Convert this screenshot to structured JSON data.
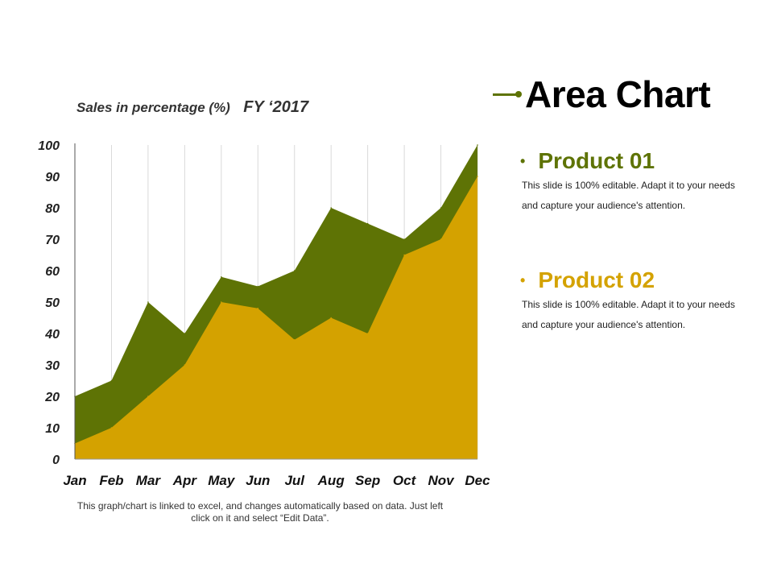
{
  "chart_heading": {
    "subtitle": "Sales in percentage (%)",
    "year": "FY ‘2017"
  },
  "chart_data": {
    "type": "area",
    "categories": [
      "Jan",
      "Feb",
      "Mar",
      "Apr",
      "May",
      "Jun",
      "Jul",
      "Aug",
      "Sep",
      "Oct",
      "Nov",
      "Dec"
    ],
    "series": [
      {
        "name": "Product 01",
        "color": "#5e7305",
        "values": [
          20,
          25,
          50,
          40,
          58,
          55,
          60,
          80,
          75,
          70,
          80,
          100
        ]
      },
      {
        "name": "Product 02",
        "color": "#d4a200",
        "values": [
          5,
          10,
          20,
          30,
          50,
          48,
          38,
          45,
          40,
          65,
          70,
          90
        ]
      }
    ],
    "ylim": [
      0,
      100
    ],
    "yticks": [
      "0",
      "10",
      "20",
      "30",
      "40",
      "50",
      "60",
      "70",
      "80",
      "90",
      "100"
    ],
    "grid": "vertical"
  },
  "footnote": "This graph/chart is linked to excel, and changes automatically based on data. Just left click on it and select “Edit Data”.",
  "title": "Area Chart",
  "products": [
    {
      "name": "Product 01",
      "color": "#5e7305",
      "description": "This slide is 100% editable. Adapt it to your needs and capture your audience's attention."
    },
    {
      "name": "Product 02",
      "color": "#d4a200",
      "description": "This slide is 100% editable. Adapt it to your needs and capture your audience's attention."
    }
  ],
  "accent_color": "#5e7305",
  "bullet_glyph": "•"
}
